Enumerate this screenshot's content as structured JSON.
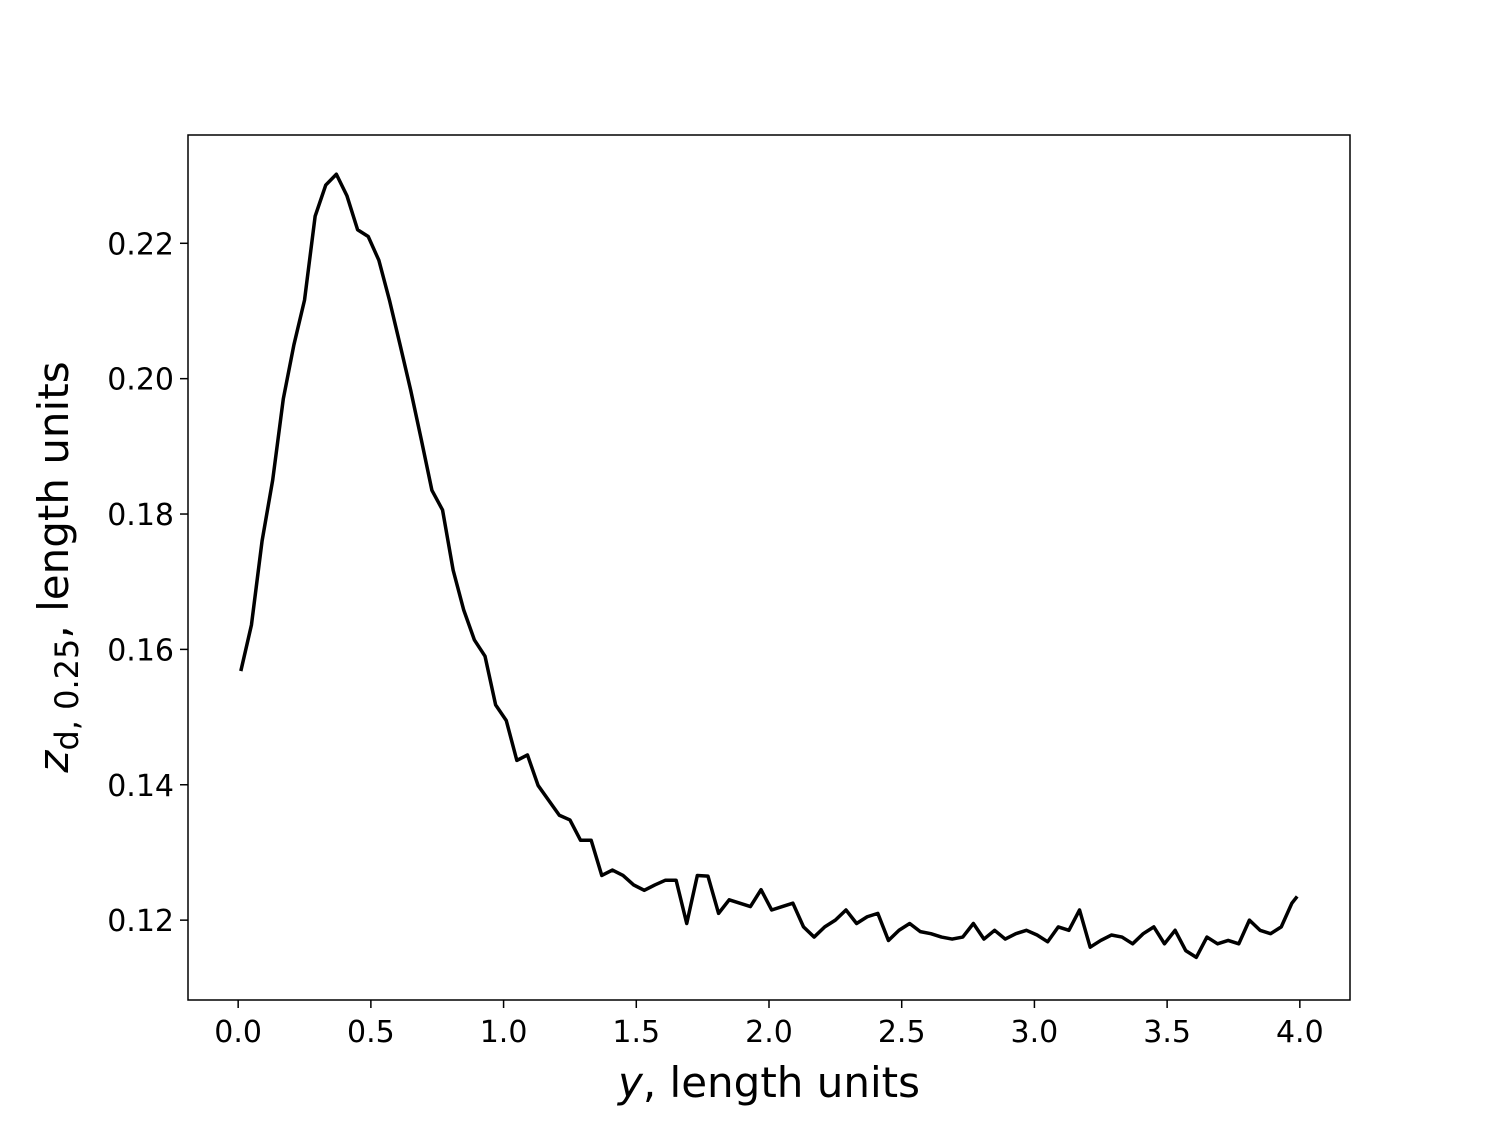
{
  "chart_data": {
    "type": "line",
    "xlabel": {
      "var": "y",
      "rest": ", length units"
    },
    "ylabel": {
      "var": "z",
      "sub": "d, 0.25",
      "rest": ", length units"
    },
    "x": [
      0.01,
      0.05,
      0.09,
      0.13,
      0.17,
      0.21,
      0.25,
      0.29,
      0.33,
      0.37,
      0.41,
      0.45,
      0.49,
      0.53,
      0.57,
      0.61,
      0.65,
      0.69,
      0.73,
      0.77,
      0.81,
      0.85,
      0.89,
      0.93,
      0.97,
      1.01,
      1.05,
      1.09,
      1.13,
      1.17,
      1.21,
      1.25,
      1.29,
      1.33,
      1.37,
      1.41,
      1.45,
      1.49,
      1.53,
      1.57,
      1.61,
      1.65,
      1.69,
      1.73,
      1.77,
      1.81,
      1.85,
      1.89,
      1.93,
      1.97,
      2.01,
      2.05,
      2.09,
      2.13,
      2.17,
      2.21,
      2.25,
      2.29,
      2.33,
      2.37,
      2.41,
      2.45,
      2.49,
      2.53,
      2.57,
      2.61,
      2.65,
      2.69,
      2.73,
      2.77,
      2.81,
      2.85,
      2.89,
      2.93,
      2.97,
      3.01,
      3.05,
      3.09,
      3.13,
      3.17,
      3.21,
      3.25,
      3.29,
      3.33,
      3.37,
      3.41,
      3.45,
      3.49,
      3.53,
      3.57,
      3.61,
      3.65,
      3.69,
      3.73,
      3.77,
      3.81,
      3.85,
      3.89,
      3.93,
      3.97,
      3.99
    ],
    "series": [
      {
        "color": "#000000",
        "values": [
          0.1568,
          0.1636,
          0.176,
          0.185,
          0.197,
          0.205,
          0.2116,
          0.224,
          0.2286,
          0.2302,
          0.227,
          0.222,
          0.221,
          0.2175,
          0.2116,
          0.205,
          0.1983,
          0.191,
          0.1835,
          0.1806,
          0.1717,
          0.1658,
          0.1614,
          0.159,
          0.1518,
          0.1495,
          0.1436,
          0.1444,
          0.1399,
          0.1377,
          0.1355,
          0.1348,
          0.1318,
          0.1318,
          0.1266,
          0.1274,
          0.1266,
          0.1252,
          0.1244,
          0.1252,
          0.1259,
          0.1259,
          0.1195,
          0.1266,
          0.1265,
          0.121,
          0.123,
          0.1225,
          0.122,
          0.1245,
          0.1215,
          0.122,
          0.1225,
          0.119,
          0.1175,
          0.119,
          0.12,
          0.1215,
          0.1195,
          0.1205,
          0.121,
          0.117,
          0.1185,
          0.1195,
          0.1183,
          0.118,
          0.1175,
          0.1172,
          0.1175,
          0.1195,
          0.1172,
          0.1185,
          0.1172,
          0.118,
          0.1185,
          0.1178,
          0.1168,
          0.119,
          0.1185,
          0.1215,
          0.116,
          0.117,
          0.1178,
          0.1175,
          0.1165,
          0.118,
          0.119,
          0.1165,
          0.1185,
          0.1155,
          0.1145,
          0.1175,
          0.1165,
          0.117,
          0.1165,
          0.12,
          0.1185,
          0.118,
          0.119,
          0.1225,
          0.1235
        ]
      }
    ],
    "xlim": [
      -0.189,
      4.189
    ],
    "ylim": [
      0.1082,
      0.236
    ],
    "xticks": [
      {
        "value": 0,
        "label": "0.0"
      },
      0.5,
      {
        "value": 1,
        "label": "1.0"
      },
      1.5,
      {
        "value": 2,
        "label": "2.0"
      },
      2.5,
      {
        "value": 3,
        "label": "3.0"
      },
      3.5,
      {
        "value": 4,
        "label": "4.0"
      }
    ],
    "yticks": [
      0.12,
      0.14,
      0.16,
      0.18,
      {
        "value": 0.2,
        "label": "0.20"
      },
      0.22
    ]
  }
}
